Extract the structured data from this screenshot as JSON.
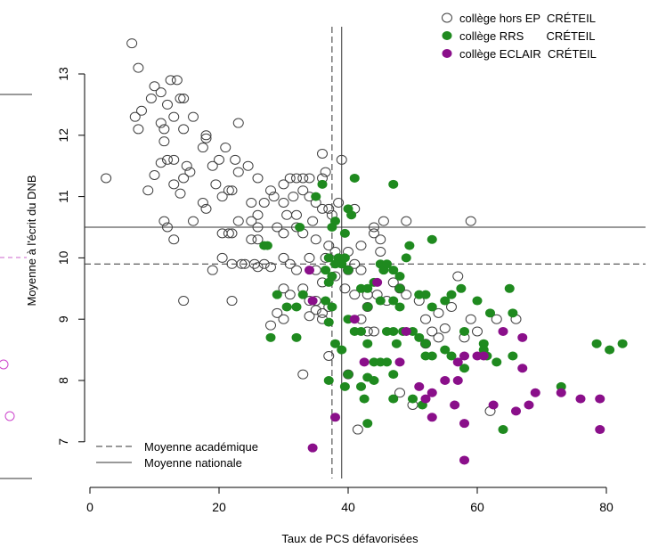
{
  "chart_data": {
    "type": "scatter",
    "xlabel": "Taux de PCS défavorisées",
    "ylabel": "Moyenne à l'écrit du DNB",
    "xlim": [
      -2,
      86
    ],
    "ylim": [
      6.5,
      13.8
    ],
    "x_ticks": [
      0,
      20,
      40,
      60,
      80
    ],
    "y_ticks": [
      7,
      8,
      9,
      10,
      11,
      12,
      13
    ],
    "grid": false,
    "reference_lines": [
      {
        "label": "Moyenne académique",
        "style": "dashed",
        "x": 37.5,
        "y": 9.9
      },
      {
        "label": "Moyenne nationale",
        "style": "solid",
        "x": 39.0,
        "y": 10.5
      }
    ],
    "legend_placement": "top-right",
    "series": [
      {
        "name": "collège hors EP  CRÉTEIL",
        "marker": "open-circle",
        "color": "#404040",
        "points": [
          [
            6.5,
            13.5
          ],
          [
            7.5,
            13.1
          ],
          [
            10,
            12.8
          ],
          [
            11,
            12.7
          ],
          [
            12.5,
            12.9
          ],
          [
            13.5,
            12.9
          ],
          [
            9.5,
            12.6
          ],
          [
            12,
            12.5
          ],
          [
            14,
            12.6
          ],
          [
            14.5,
            12.6
          ],
          [
            8,
            12.4
          ],
          [
            7,
            12.3
          ],
          [
            11,
            12.2
          ],
          [
            13,
            12.3
          ],
          [
            16,
            12.3
          ],
          [
            7.5,
            12.1
          ],
          [
            11.5,
            12.1
          ],
          [
            14.5,
            12.1
          ],
          [
            23,
            12.2
          ],
          [
            18,
            12
          ],
          [
            18,
            11.95
          ],
          [
            11.5,
            11.9
          ],
          [
            12,
            11.6
          ],
          [
            13,
            11.6
          ],
          [
            17.5,
            11.8
          ],
          [
            21,
            11.8
          ],
          [
            22.5,
            11.6
          ],
          [
            11,
            11.55
          ],
          [
            15,
            11.5
          ],
          [
            19,
            11.5
          ],
          [
            20,
            11.6
          ],
          [
            24.5,
            11.5
          ],
          [
            23,
            11.4
          ],
          [
            15.5,
            11.4
          ],
          [
            10,
            11.35
          ],
          [
            2.5,
            11.3
          ],
          [
            14.5,
            11.3
          ],
          [
            26,
            11.3
          ],
          [
            13,
            11.2
          ],
          [
            19.5,
            11.2
          ],
          [
            9,
            11.1
          ],
          [
            14,
            11.05
          ],
          [
            21.5,
            11.1
          ],
          [
            22,
            11.1
          ],
          [
            30,
            11.2
          ],
          [
            31,
            11.3
          ],
          [
            32,
            11.3
          ],
          [
            33,
            11.3
          ],
          [
            34,
            11.3
          ],
          [
            36,
            11.3
          ],
          [
            33,
            11.1
          ],
          [
            28,
            11.1
          ],
          [
            28.5,
            11
          ],
          [
            27,
            10.9
          ],
          [
            20.5,
            11
          ],
          [
            17.5,
            10.9
          ],
          [
            18,
            10.8
          ],
          [
            25,
            10.9
          ],
          [
            30,
            10.9
          ],
          [
            31.5,
            11
          ],
          [
            35,
            10.9
          ],
          [
            34,
            11
          ],
          [
            37,
            10.8
          ],
          [
            38.5,
            10.9
          ],
          [
            37.5,
            10.7
          ],
          [
            36,
            10.8
          ],
          [
            34.5,
            10.6
          ],
          [
            32,
            10.7
          ],
          [
            30.5,
            10.7
          ],
          [
            26,
            10.7
          ],
          [
            26,
            10.5
          ],
          [
            25,
            10.6
          ],
          [
            23,
            10.6
          ],
          [
            16,
            10.6
          ],
          [
            11.5,
            10.6
          ],
          [
            12,
            10.5
          ],
          [
            21.5,
            10.4
          ],
          [
            20.5,
            10.4
          ],
          [
            22,
            10.4
          ],
          [
            25,
            10.3
          ],
          [
            26,
            10.3
          ],
          [
            30,
            10.4
          ],
          [
            29,
            10.5
          ],
          [
            32,
            10.5
          ],
          [
            33,
            10.4
          ],
          [
            35,
            10.3
          ],
          [
            37,
            10.2
          ],
          [
            38,
            10.1
          ],
          [
            40,
            10.1
          ],
          [
            13,
            10.3
          ],
          [
            36.5,
            10
          ],
          [
            34,
            10
          ],
          [
            30,
            10
          ],
          [
            27,
            9.9
          ],
          [
            25.5,
            9.9
          ],
          [
            24,
            9.9
          ],
          [
            23.5,
            9.9
          ],
          [
            22,
            9.9
          ],
          [
            20.5,
            10
          ],
          [
            19,
            9.8
          ],
          [
            26,
            9.85
          ],
          [
            28,
            9.85
          ],
          [
            31,
            9.9
          ],
          [
            32,
            9.8
          ],
          [
            35,
            9.8
          ],
          [
            36,
            9.6
          ],
          [
            38,
            9.7
          ],
          [
            40,
            9.8
          ],
          [
            41,
            9.9
          ],
          [
            42,
            9.8
          ],
          [
            30,
            9.5
          ],
          [
            31,
            9.4
          ],
          [
            33,
            9.5
          ],
          [
            34,
            9.3
          ],
          [
            35,
            9.3
          ],
          [
            36,
            9.1
          ],
          [
            37,
            9.2
          ],
          [
            39.5,
            9.5
          ],
          [
            41,
            9.4
          ],
          [
            43,
            9.4
          ],
          [
            44.5,
            9.4
          ],
          [
            46,
            9.3
          ],
          [
            43,
            9.2
          ],
          [
            47,
            9.6
          ],
          [
            48,
            9.5
          ],
          [
            49,
            9.4
          ],
          [
            51,
            9.3
          ],
          [
            54,
            9.1
          ],
          [
            56,
            9.2
          ],
          [
            57,
            9.7
          ],
          [
            29,
            9.1
          ],
          [
            30,
            9
          ],
          [
            34,
            9.05
          ],
          [
            35,
            9.15
          ],
          [
            36,
            9
          ],
          [
            28,
            8.9
          ],
          [
            22,
            9.3
          ],
          [
            14.5,
            9.3
          ],
          [
            42,
            9
          ],
          [
            43,
            8.8
          ],
          [
            44,
            8.8
          ],
          [
            52,
            9
          ],
          [
            53,
            8.8
          ],
          [
            55,
            8.85
          ],
          [
            59,
            9
          ],
          [
            60,
            8.8
          ],
          [
            63,
            9
          ],
          [
            66,
            9
          ],
          [
            52,
            8.6
          ],
          [
            54,
            8.7
          ],
          [
            58,
            8.7
          ],
          [
            37,
            8.4
          ],
          [
            33,
            8.1
          ],
          [
            40,
            8.1
          ],
          [
            48,
            7.8
          ],
          [
            50,
            7.6
          ],
          [
            62,
            7.5
          ],
          [
            41.5,
            7.2
          ],
          [
            44,
            10.4
          ],
          [
            45,
            10.3
          ],
          [
            44,
            10.5
          ],
          [
            45.5,
            10.6
          ],
          [
            49,
            10.6
          ],
          [
            59,
            10.6
          ],
          [
            41,
            10.8
          ],
          [
            36,
            11.7
          ],
          [
            36.5,
            11.4
          ],
          [
            39,
            11.6
          ],
          [
            42,
            10.2
          ],
          [
            45,
            10.1
          ]
        ]
      },
      {
        "name": "collège RRS       CRÉTEIL",
        "marker": "filled-circle",
        "color": "#1f8a1f",
        "points": [
          [
            36,
            11.2
          ],
          [
            41,
            11.3
          ],
          [
            47,
            11.2
          ],
          [
            35,
            11
          ],
          [
            40,
            10.8
          ],
          [
            38,
            10.6
          ],
          [
            40.5,
            10.7
          ],
          [
            32.5,
            10.5
          ],
          [
            37.5,
            10.5
          ],
          [
            39.5,
            10.4
          ],
          [
            53,
            10.3
          ],
          [
            27,
            10.2
          ],
          [
            27.5,
            10.2
          ],
          [
            49.5,
            10.2
          ],
          [
            49,
            10
          ],
          [
            37,
            10
          ],
          [
            38.5,
            10
          ],
          [
            39.5,
            10
          ],
          [
            39,
            9.9
          ],
          [
            45,
            9.9
          ],
          [
            45.5,
            9.8
          ],
          [
            46,
            9.9
          ],
          [
            36.5,
            9.8
          ],
          [
            37.5,
            9.7
          ],
          [
            38,
            9.9
          ],
          [
            40,
            9.8
          ],
          [
            47,
            9.8
          ],
          [
            48,
            9.7
          ],
          [
            37,
            9.6
          ],
          [
            42,
            9.5
          ],
          [
            43,
            9.5
          ],
          [
            44,
            9.6
          ],
          [
            48,
            9.5
          ],
          [
            51,
            9.4
          ],
          [
            52,
            9.4
          ],
          [
            56,
            9.4
          ],
          [
            57.5,
            9.5
          ],
          [
            65,
            9.5
          ],
          [
            29,
            9.4
          ],
          [
            33,
            9.4
          ],
          [
            36.5,
            9.3
          ],
          [
            37.5,
            9.2
          ],
          [
            43,
            9.2
          ],
          [
            45,
            9.3
          ],
          [
            47,
            9.3
          ],
          [
            48,
            9.2
          ],
          [
            53,
            9.2
          ],
          [
            55,
            9.3
          ],
          [
            60,
            9.3
          ],
          [
            32,
            9.2
          ],
          [
            30.5,
            9.2
          ],
          [
            37,
            8.95
          ],
          [
            40,
            9
          ],
          [
            46,
            8.8
          ],
          [
            47,
            8.8
          ],
          [
            48.5,
            8.8
          ],
          [
            50,
            8.8
          ],
          [
            51,
            8.7
          ],
          [
            52,
            8.6
          ],
          [
            55,
            8.5
          ],
          [
            58,
            8.8
          ],
          [
            61,
            8.6
          ],
          [
            62,
            9.1
          ],
          [
            65.5,
            9.1
          ],
          [
            41,
            8.8
          ],
          [
            42,
            8.8
          ],
          [
            43,
            8.6
          ],
          [
            47.5,
            8.6
          ],
          [
            53,
            8.4
          ],
          [
            56,
            8.4
          ],
          [
            61,
            8.5
          ],
          [
            61.5,
            8.4
          ],
          [
            63,
            8.3
          ],
          [
            65.5,
            8.4
          ],
          [
            78.5,
            8.6
          ],
          [
            80.5,
            8.5
          ],
          [
            82.5,
            8.6
          ],
          [
            28,
            8.7
          ],
          [
            32,
            8.7
          ],
          [
            38,
            8.6
          ],
          [
            39,
            8.5
          ],
          [
            44,
            8.3
          ],
          [
            45,
            8.3
          ],
          [
            46,
            8.3
          ],
          [
            52,
            8.4
          ],
          [
            58,
            8.2
          ],
          [
            47,
            8.1
          ],
          [
            40,
            8.1
          ],
          [
            43,
            8.05
          ],
          [
            44,
            8
          ],
          [
            37,
            8
          ],
          [
            39.5,
            7.9
          ],
          [
            42,
            7.9
          ],
          [
            42.5,
            7.7
          ],
          [
            47,
            7.7
          ],
          [
            50,
            7.7
          ],
          [
            51.5,
            7.6
          ],
          [
            73,
            7.9
          ],
          [
            64,
            7.2
          ],
          [
            43,
            7.3
          ]
        ]
      },
      {
        "name": "collège ECLAIR  CRÉTEIL",
        "marker": "filled-circle",
        "color": "#8a0f8a",
        "points": [
          [
            34,
            9.8
          ],
          [
            44.5,
            9.6
          ],
          [
            34.5,
            9.3
          ],
          [
            41,
            9
          ],
          [
            49,
            8.8
          ],
          [
            64,
            8.8
          ],
          [
            67,
            8.7
          ],
          [
            58,
            8.4
          ],
          [
            60,
            8.4
          ],
          [
            57,
            8.3
          ],
          [
            61,
            8.4
          ],
          [
            67,
            8.2
          ],
          [
            42.5,
            8.3
          ],
          [
            48,
            8.3
          ],
          [
            55,
            8
          ],
          [
            57,
            8
          ],
          [
            51,
            7.9
          ],
          [
            53,
            7.8
          ],
          [
            52,
            7.7
          ],
          [
            56.5,
            7.6
          ],
          [
            62.5,
            7.6
          ],
          [
            66,
            7.5
          ],
          [
            68,
            7.6
          ],
          [
            69,
            7.8
          ],
          [
            73,
            7.8
          ],
          [
            76,
            7.7
          ],
          [
            79,
            7.7
          ],
          [
            38,
            7.4
          ],
          [
            53,
            7.4
          ],
          [
            58,
            7.3
          ],
          [
            79,
            7.2
          ],
          [
            34.5,
            6.9
          ],
          [
            58,
            6.7
          ]
        ]
      }
    ]
  },
  "colors": {
    "open_marker": "#404040",
    "rrs_marker": "#1f8a1f",
    "eclair_marker": "#8a0f8a",
    "line": "#333333"
  }
}
